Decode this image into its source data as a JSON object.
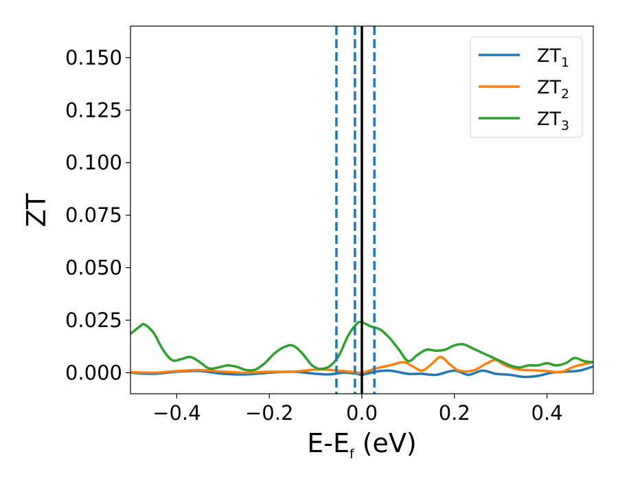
{
  "chart_data": {
    "type": "line",
    "xlabel_main": "E-E",
    "xlabel_sub": "f",
    "xlabel_unit": " (eV)",
    "ylabel": "ZT",
    "xlim": [
      -0.5,
      0.5
    ],
    "ylim": [
      -0.01,
      0.165
    ],
    "xticks": [
      -0.4,
      -0.2,
      0.0,
      0.2,
      0.4
    ],
    "xtick_labels": [
      "−0.4",
      "−0.2",
      "0.0",
      "0.2",
      "0.4"
    ],
    "yticks": [
      0.0,
      0.025,
      0.05,
      0.075,
      0.1,
      0.125,
      0.15
    ],
    "ytick_labels": [
      "0.000",
      "0.025",
      "0.050",
      "0.075",
      "0.100",
      "0.125",
      "0.150"
    ],
    "grid": false,
    "legend_position": "top-right",
    "vlines": [
      {
        "x": 0.0,
        "color": "#000000",
        "style": "solid"
      },
      {
        "x": -0.055,
        "color": "#1f77b4",
        "style": "dashed"
      },
      {
        "x": -0.015,
        "color": "#1f77b4",
        "style": "dashed"
      },
      {
        "x": 0.027,
        "color": "#1f77b4",
        "style": "dashed"
      }
    ],
    "series": [
      {
        "name_main": "ZT",
        "name_sub": "1",
        "color": "#1f77b4",
        "x": [
          -0.5,
          -0.45,
          -0.4,
          -0.35,
          -0.3,
          -0.25,
          -0.2,
          -0.15,
          -0.1,
          -0.07,
          -0.04,
          -0.01,
          0.0,
          0.03,
          0.06,
          0.1,
          0.13,
          0.16,
          0.2,
          0.23,
          0.26,
          0.29,
          0.32,
          0.35,
          0.38,
          0.41,
          0.44,
          0.47,
          0.5
        ],
        "y": [
          0.0,
          -0.0005,
          0.0005,
          0.0008,
          -0.0005,
          -0.0008,
          0.0,
          0.0005,
          -0.0005,
          -0.0008,
          0.0,
          -0.0005,
          -0.001,
          0.0005,
          0.001,
          -0.0005,
          -0.0005,
          -0.001,
          0.001,
          -0.001,
          0.001,
          -0.0005,
          -0.001,
          -0.002,
          -0.0015,
          0.0,
          0.0005,
          0.001,
          0.003
        ]
      },
      {
        "name_main": "ZT",
        "name_sub": "2",
        "color": "#ff7f0e",
        "x": [
          -0.5,
          -0.45,
          -0.4,
          -0.35,
          -0.3,
          -0.25,
          -0.2,
          -0.15,
          -0.1,
          -0.08,
          -0.05,
          -0.02,
          0.0,
          0.03,
          0.06,
          0.09,
          0.11,
          0.13,
          0.15,
          0.17,
          0.19,
          0.21,
          0.24,
          0.27,
          0.29,
          0.31,
          0.34,
          0.37,
          0.4,
          0.43,
          0.46,
          0.5
        ],
        "y": [
          0.0003,
          0.0,
          0.0008,
          0.0013,
          0.0005,
          0.0,
          0.0005,
          0.0005,
          0.0015,
          0.0015,
          0.001,
          0.0003,
          0.0,
          0.002,
          0.0035,
          0.005,
          0.003,
          0.001,
          0.004,
          0.0075,
          0.004,
          0.001,
          0.001,
          0.0045,
          0.006,
          0.0035,
          0.0015,
          0.0012,
          0.0008,
          0.0003,
          0.003,
          0.005
        ]
      },
      {
        "name_main": "ZT",
        "name_sub": "3",
        "color": "#2ca02c",
        "x": [
          -0.5,
          -0.48,
          -0.47,
          -0.45,
          -0.43,
          -0.41,
          -0.39,
          -0.37,
          -0.35,
          -0.33,
          -0.31,
          -0.29,
          -0.27,
          -0.25,
          -0.23,
          -0.21,
          -0.19,
          -0.17,
          -0.15,
          -0.13,
          -0.11,
          -0.1,
          -0.09,
          -0.07,
          -0.05,
          -0.03,
          -0.01,
          0.0,
          0.02,
          0.04,
          0.06,
          0.08,
          0.1,
          0.12,
          0.14,
          0.16,
          0.18,
          0.2,
          0.22,
          0.24,
          0.26,
          0.28,
          0.3,
          0.32,
          0.34,
          0.36,
          0.38,
          0.4,
          0.42,
          0.44,
          0.46,
          0.48,
          0.5
        ],
        "y": [
          0.0185,
          0.022,
          0.023,
          0.019,
          0.011,
          0.006,
          0.0065,
          0.0075,
          0.005,
          0.002,
          0.0025,
          0.0035,
          0.0028,
          0.0013,
          0.0015,
          0.0045,
          0.009,
          0.012,
          0.013,
          0.0095,
          0.004,
          0.0025,
          0.0018,
          0.003,
          0.008,
          0.0175,
          0.0235,
          0.024,
          0.022,
          0.0205,
          0.0165,
          0.011,
          0.0055,
          0.0085,
          0.011,
          0.0105,
          0.011,
          0.013,
          0.0135,
          0.0115,
          0.0095,
          0.0075,
          0.0055,
          0.0035,
          0.0025,
          0.0035,
          0.0035,
          0.0045,
          0.0035,
          0.0045,
          0.007,
          0.0055,
          0.005
        ]
      }
    ]
  }
}
